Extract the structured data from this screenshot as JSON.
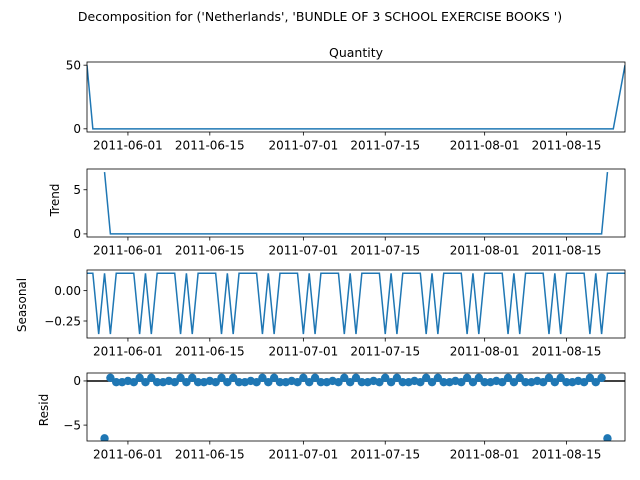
{
  "suptitle": "Decomposition for ('Netherlands', 'BUNDLE OF 3 SCHOOL EXERCISE BOOKS  ')",
  "colors": {
    "series": "#1f77b4",
    "axis": "#000000",
    "zero_line": "#000000"
  },
  "chart_data": [
    {
      "type": "line",
      "title": "Quantity",
      "ylabel": "",
      "x_start": "2011-05-25",
      "x_end": "2011-08-25",
      "x_ticks": [
        "2011-06-01",
        "2011-06-15",
        "2011-07-01",
        "2011-07-15",
        "2011-08-01",
        "2011-08-15"
      ],
      "ylim": [
        -2.5,
        52.5
      ],
      "y_ticks": [
        0,
        50
      ],
      "points": [
        [
          0,
          50
        ],
        [
          1,
          0
        ],
        [
          90,
          0
        ],
        [
          92,
          50
        ]
      ]
    },
    {
      "type": "line",
      "title": "",
      "ylabel": "Trend",
      "x_start": "2011-05-25",
      "x_end": "2011-08-25",
      "x_ticks": [
        "2011-06-01",
        "2011-06-15",
        "2011-07-01",
        "2011-07-15",
        "2011-08-01",
        "2011-08-15"
      ],
      "ylim": [
        -0.35,
        7.35
      ],
      "y_ticks": [
        0,
        5
      ],
      "points": [
        [
          3,
          7.0
        ],
        [
          4,
          0
        ],
        [
          88,
          0
        ],
        [
          89,
          7.0
        ]
      ]
    },
    {
      "type": "line",
      "title": "",
      "ylabel": "Seasonal",
      "x_start": "2011-05-25",
      "x_end": "2011-08-25",
      "x_ticks": [
        "2011-06-01",
        "2011-06-15",
        "2011-07-01",
        "2011-07-15",
        "2011-08-01",
        "2011-08-15"
      ],
      "ylim": [
        -0.39,
        0.17
      ],
      "y_ticks": [
        0.0,
        -0.25
      ],
      "y_tick_labels": [
        "0.00",
        "−0.25"
      ],
      "pattern": [
        0.143,
        0.143,
        -0.357,
        0.143,
        -0.357,
        0.143,
        0.143
      ],
      "x_range": [
        0,
        92
      ]
    },
    {
      "type": "scatter",
      "title": "",
      "ylabel": "Resid",
      "x_start": "2011-05-25",
      "x_end": "2011-08-25",
      "x_ticks": [
        "2011-06-01",
        "2011-06-15",
        "2011-07-01",
        "2011-07-15",
        "2011-08-01",
        "2011-08-15"
      ],
      "ylim": [
        -6.8,
        0.9
      ],
      "y_ticks": [
        0,
        -5
      ],
      "y_tick_labels": [
        "0",
        "−5"
      ],
      "zero_line": true,
      "resid_pattern": [
        0.0,
        -0.143,
        0.357,
        -0.143,
        0.357,
        -0.143,
        -0.143
      ],
      "resid_x_range": [
        4,
        88
      ],
      "resid_outliers": [
        [
          3,
          -6.5
        ],
        [
          89,
          -6.5
        ]
      ]
    }
  ]
}
